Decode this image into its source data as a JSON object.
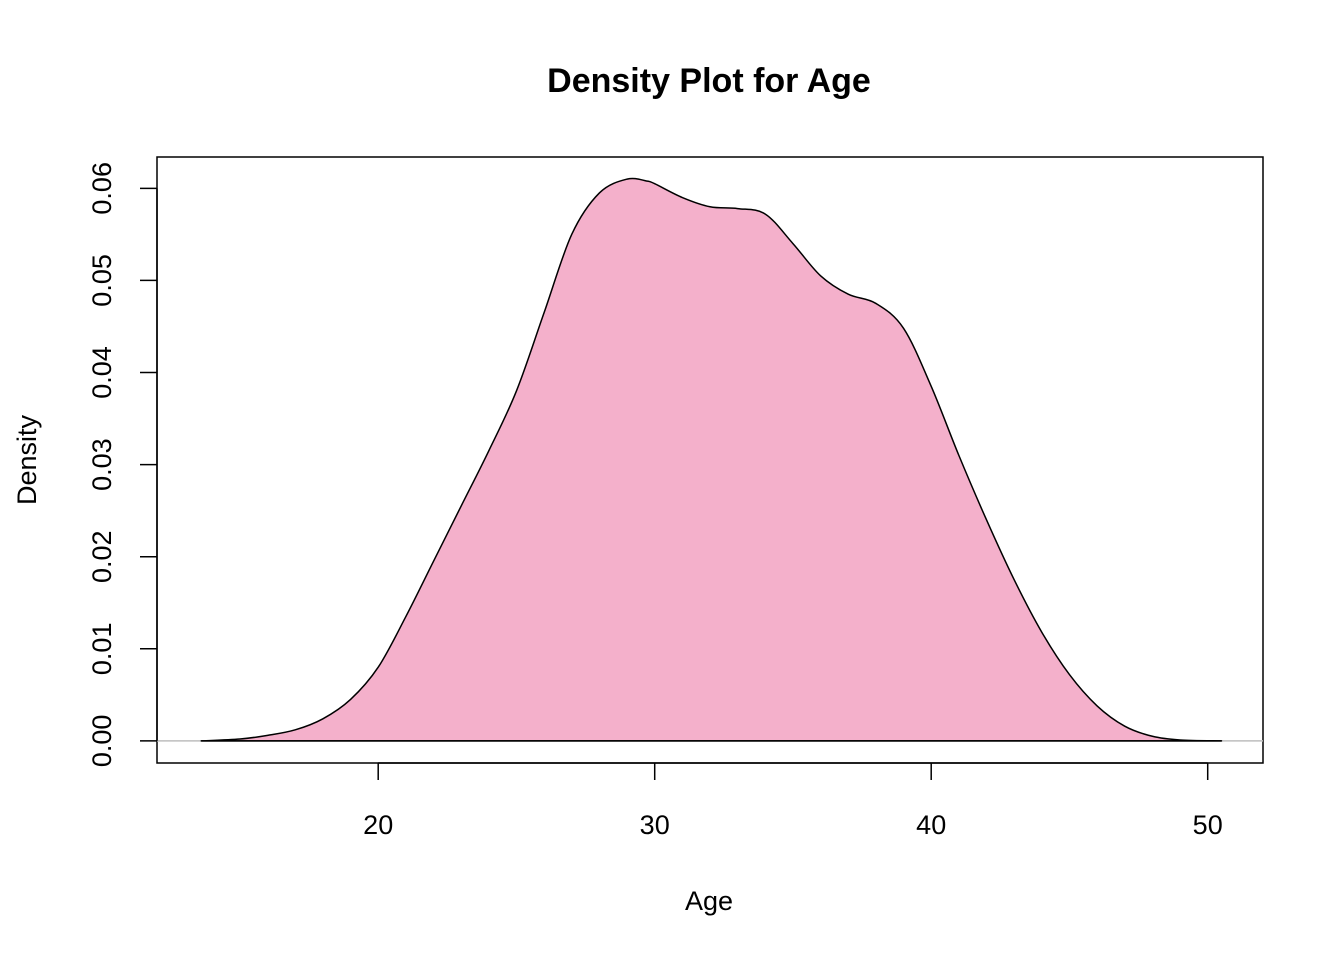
{
  "chart_data": {
    "type": "area",
    "title": "Density Plot for Age",
    "xlabel": "Age",
    "ylabel": "Density",
    "xlim": [
      12,
      52
    ],
    "ylim": [
      -0.0024,
      0.0634
    ],
    "x_ticks": [
      20,
      30,
      40,
      50
    ],
    "x_tick_labels": [
      "20",
      "30",
      "40",
      "50"
    ],
    "y_ticks": [
      0.0,
      0.01,
      0.02,
      0.03,
      0.04,
      0.05,
      0.06
    ],
    "y_tick_labels": [
      "0.00",
      "0.01",
      "0.02",
      "0.03",
      "0.04",
      "0.05",
      "0.06"
    ],
    "grid": false,
    "fill_color": "#f4b0cb",
    "line_color": "#000000",
    "baseline_color": "#bebebe",
    "series": [
      {
        "x": [
          13.6,
          15,
          16,
          17,
          18,
          19,
          20,
          21,
          22,
          23,
          24,
          25,
          26,
          27,
          28,
          29,
          29.7,
          30,
          31,
          32,
          33,
          34,
          35,
          36,
          37,
          38,
          39,
          40,
          41,
          42,
          43,
          44,
          45,
          46,
          47,
          48,
          49,
          50.5
        ],
        "y": [
          0.0,
          0.0002,
          0.0006,
          0.0012,
          0.0024,
          0.0045,
          0.008,
          0.0135,
          0.0195,
          0.0255,
          0.0315,
          0.038,
          0.0465,
          0.055,
          0.0595,
          0.061,
          0.0608,
          0.0605,
          0.059,
          0.058,
          0.0578,
          0.0572,
          0.054,
          0.0505,
          0.0485,
          0.0475,
          0.0448,
          0.0385,
          0.031,
          0.024,
          0.0175,
          0.0118,
          0.0072,
          0.0038,
          0.0016,
          0.0005,
          0.0001,
          0.0
        ]
      }
    ]
  }
}
